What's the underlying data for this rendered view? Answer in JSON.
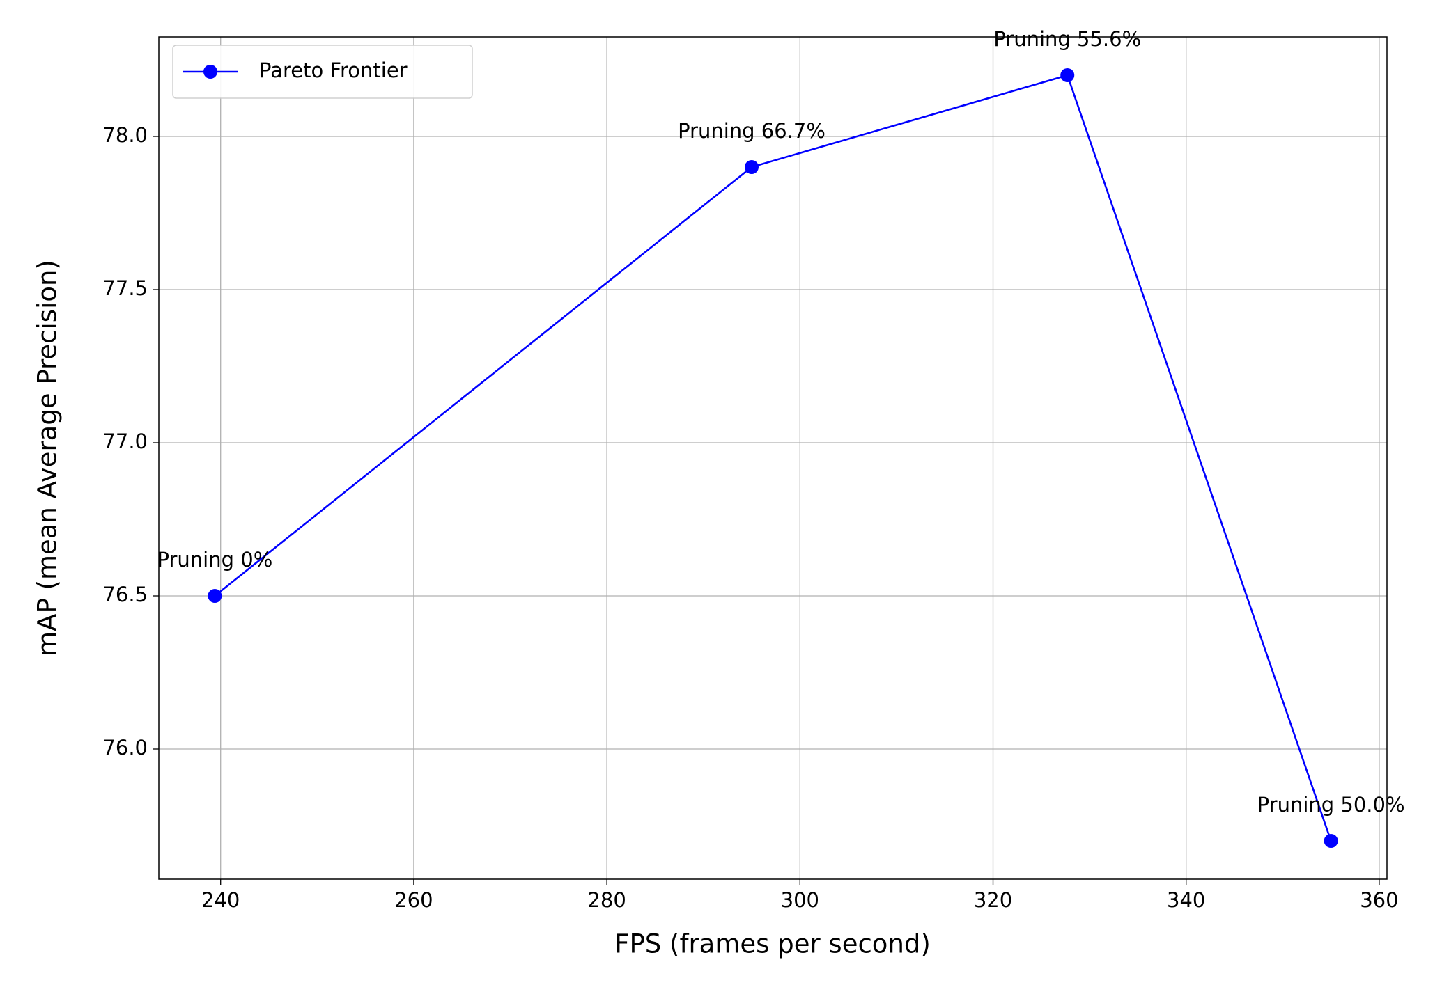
{
  "chart_data": {
    "type": "line",
    "xlabel": "FPS (frames per second)",
    "ylabel": "mAP (mean Average Precision)",
    "x": [
      239.4,
      295,
      327.7,
      355
    ],
    "series": [
      {
        "name": "Pareto Frontier",
        "color": "#0000ff",
        "values": [
          76.5,
          77.9,
          78.2,
          75.7
        ]
      }
    ],
    "annotations": [
      "Pruning 0%",
      "Pruning 66.7%",
      "Pruning 55.6%",
      "Pruning 50.0%"
    ],
    "xlim": [
      233.6,
      360.8
    ],
    "xticks": [
      240,
      260,
      280,
      300,
      320,
      340,
      360
    ],
    "ylim": [
      75.575,
      78.325
    ],
    "yticks": [
      {
        "value": 76,
        "label": "76.0"
      },
      {
        "value": 76.5,
        "label": "76.5"
      },
      {
        "value": 77,
        "label": "77.0"
      },
      {
        "value": 77.5,
        "label": "77.5"
      },
      {
        "value": 78,
        "label": "78.0"
      }
    ],
    "grid": true,
    "legend": "upper left"
  }
}
